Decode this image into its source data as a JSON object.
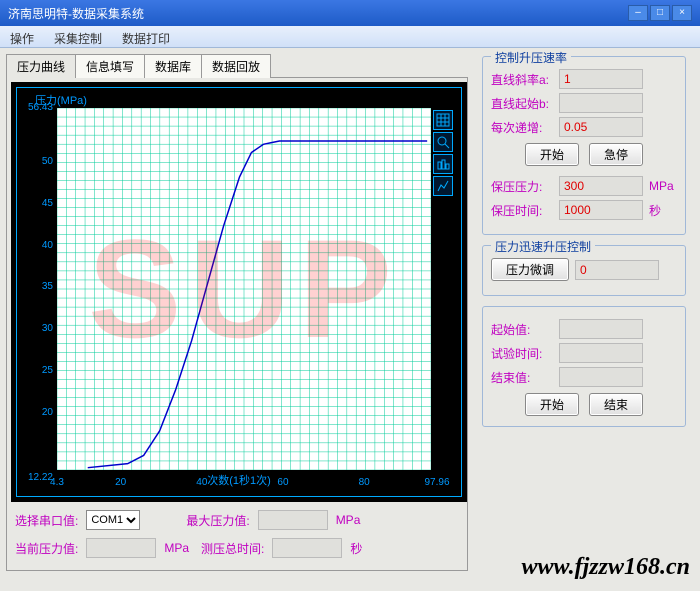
{
  "window": {
    "title": "济南思明特-数据采集系统"
  },
  "menu": [
    "操作",
    "采集控制",
    "数据打印"
  ],
  "tabs": [
    "压力曲线",
    "信息填写",
    "数据库",
    "数据回放"
  ],
  "chart": {
    "yaxis_label": "压力(MPa)",
    "xaxis_label": "次数(1秒1次)",
    "ylim": [
      12.22,
      56.43
    ],
    "yticks": [
      56.43,
      50,
      45,
      40,
      35,
      30,
      25,
      20,
      12.22
    ],
    "xlim": [
      4.3,
      97.96
    ],
    "xticks": [
      4.3,
      20,
      40,
      60,
      80,
      97.96
    ],
    "grid_color": "#00cc99",
    "line_color": "#0000cc",
    "bg_color": "#ffffff",
    "outer_bg": "#000000",
    "line_points": [
      [
        12,
        12.5
      ],
      [
        22,
        13
      ],
      [
        26,
        14
      ],
      [
        30,
        17
      ],
      [
        34,
        22
      ],
      [
        38,
        28
      ],
      [
        42,
        35
      ],
      [
        46,
        42
      ],
      [
        50,
        48
      ],
      [
        53,
        51
      ],
      [
        56,
        52
      ],
      [
        58,
        52.2
      ],
      [
        60,
        52.4
      ],
      [
        70,
        52.4
      ],
      [
        80,
        52.4
      ],
      [
        90,
        52.4
      ],
      [
        97,
        52.4
      ]
    ],
    "watermark": "SUP"
  },
  "tool_icons": [
    "grid-icon",
    "zoom-icon",
    "tool3-icon",
    "tool4-icon"
  ],
  "footer": {
    "port_label": "选择串口值:",
    "port_value": "COM1",
    "maxp_label": "最大压力值:",
    "maxp_unit": "MPa",
    "curp_label": "当前压力值:",
    "curp_unit": "MPa",
    "time_label": "测压总时间:",
    "time_unit": "秒"
  },
  "ctrl_rate": {
    "legend": "控制升压速率",
    "slope_label": "直线斜率a:",
    "slope_val": "1",
    "start_label": "直线起始b:",
    "start_val": "",
    "step_label": "每次递增:",
    "step_val": "0.05",
    "btn_start": "开始",
    "btn_pause": "急停",
    "holdp_label": "保压压力:",
    "holdp_val": "300",
    "holdp_unit": "MPa",
    "holdt_label": "保压时间:",
    "holdt_val": "1000",
    "holdt_unit": "秒"
  },
  "ctrl_fast": {
    "legend": "压力迅速升压控制",
    "adj_btn": "压力微调",
    "adj_val": "0"
  },
  "ctrl_test": {
    "start_label": "起始值:",
    "time_label": "试验时间:",
    "end_label": "结束值:",
    "btn_start": "开始",
    "btn_end": "结束"
  },
  "site_watermark": "www.fjzzw168.cn"
}
